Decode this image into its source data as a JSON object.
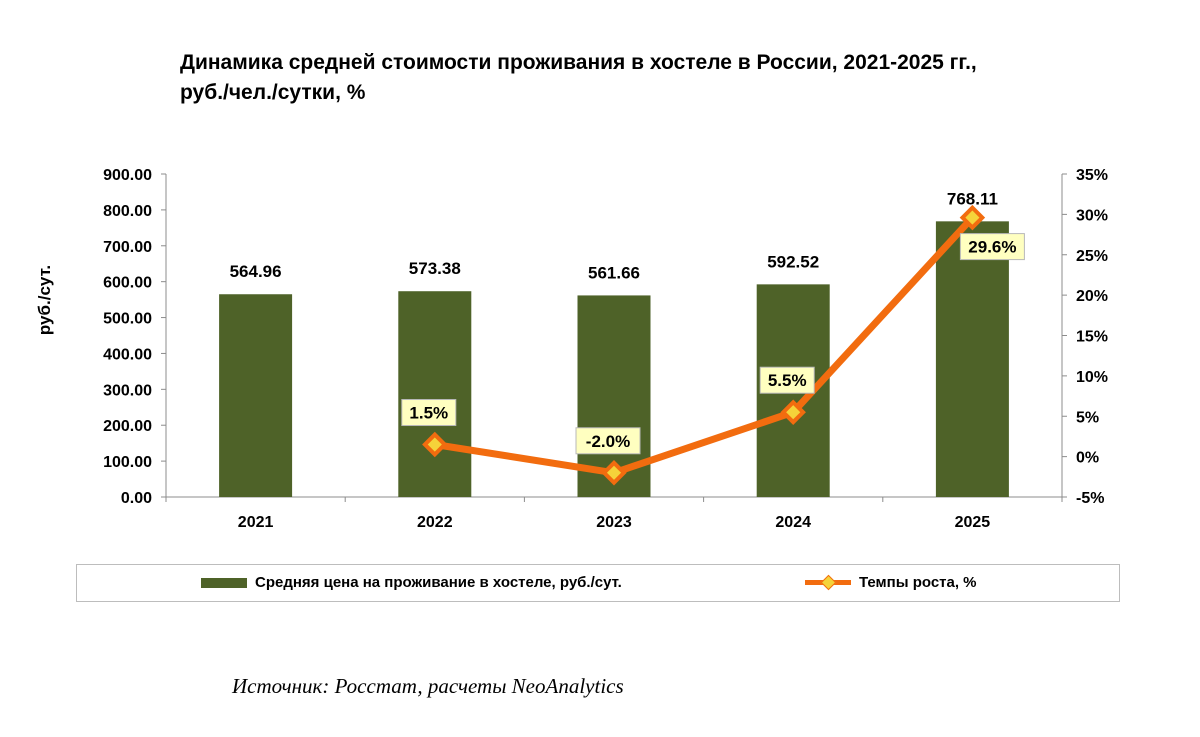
{
  "title_line1": "Динамика средней стоимости проживания в хостеле в России, 2021-2025 гг.,",
  "title_line2": "руб./чел./сутки, %",
  "source": "Источник: Росстат, расчеты NeoAnalytics",
  "chart_data": {
    "type": "bar",
    "categories": [
      "2021",
      "2022",
      "2023",
      "2024",
      "2025"
    ],
    "ylabel": "руб./сут.",
    "y_left": {
      "min": 0,
      "max": 900,
      "step": 100,
      "tick_labels": [
        "0.00",
        "100.00",
        "200.00",
        "300.00",
        "400.00",
        "500.00",
        "600.00",
        "700.00",
        "800.00",
        "900.00"
      ]
    },
    "y_right": {
      "min": -5,
      "max": 35,
      "step": 5,
      "tick_labels": [
        "-5%",
        "0%",
        "5%",
        "10%",
        "15%",
        "20%",
        "25%",
        "30%",
        "35%"
      ]
    },
    "series": [
      {
        "name": "Средняя цена на проживание в хостеле, руб./сут.",
        "type": "bar",
        "axis": "left",
        "values": [
          564.96,
          573.38,
          561.66,
          592.52,
          768.11
        ],
        "labels": [
          "564.96",
          "573.38",
          "561.66",
          "592.52",
          "768.11"
        ]
      },
      {
        "name": "Темпы роста, %",
        "type": "line",
        "axis": "right",
        "values": [
          null,
          1.5,
          -2.0,
          5.5,
          29.6
        ],
        "labels": [
          "",
          "1.5%",
          "-2.0%",
          "5.5%",
          "29.6%"
        ]
      }
    ],
    "colors": {
      "bar": "#4e6228",
      "line": "#f26c0f",
      "marker": "#f5d33a",
      "label_box": "#ffffc0"
    },
    "legend_position": "bottom"
  }
}
